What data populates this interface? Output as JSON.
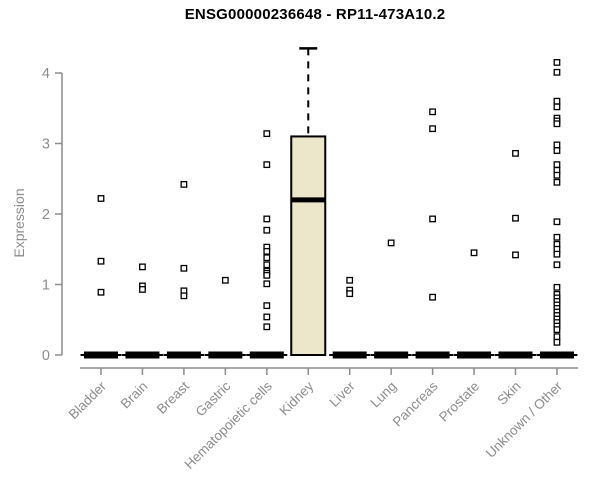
{
  "chart_data": {
    "type": "boxplot",
    "title": "ENSG00000236648 - RP11-473A10.2",
    "xlabel": "",
    "ylabel": "Expression",
    "ylim": [
      0,
      4.5
    ],
    "yticks": [
      0,
      1,
      2,
      3,
      4
    ],
    "grid": false,
    "legend": false,
    "categories": [
      "Bladder",
      "Brain",
      "Breast",
      "Gastric",
      "Hematopoietic cells",
      "Kidney",
      "Liver",
      "Lung",
      "Pancreas",
      "Prostate",
      "Skin",
      "Unknown / Other"
    ],
    "boxes": [
      {
        "category": "Bladder",
        "q1": 0,
        "median": 0,
        "q3": 0,
        "whisker_low": 0,
        "whisker_high": 0,
        "outliers": [
          2.22,
          1.33,
          0.89
        ]
      },
      {
        "category": "Brain",
        "q1": 0,
        "median": 0,
        "q3": 0,
        "whisker_low": 0,
        "whisker_high": 0,
        "outliers": [
          1.25,
          0.98,
          0.93
        ]
      },
      {
        "category": "Breast",
        "q1": 0,
        "median": 0,
        "q3": 0,
        "whisker_low": 0,
        "whisker_high": 0,
        "outliers": [
          2.42,
          1.23,
          0.91,
          0.84
        ]
      },
      {
        "category": "Gastric",
        "q1": 0,
        "median": 0,
        "q3": 0,
        "whisker_low": 0,
        "whisker_high": 0,
        "outliers": [
          1.06
        ]
      },
      {
        "category": "Hematopoietic cells",
        "q1": 0,
        "median": 0,
        "q3": 0,
        "whisker_low": 0,
        "whisker_high": 0,
        "outliers": [
          3.14,
          2.7,
          1.93,
          1.77,
          1.53,
          1.47,
          1.38,
          1.28,
          1.19,
          1.16,
          1.13,
          1.01,
          0.7,
          0.54,
          0.4
        ]
      },
      {
        "category": "Kidney",
        "q1": 0,
        "median": 2.2,
        "q3": 3.1,
        "whisker_low": 0,
        "whisker_high": 4.35,
        "outliers": []
      },
      {
        "category": "Liver",
        "q1": 0,
        "median": 0,
        "q3": 0,
        "whisker_low": 0,
        "whisker_high": 0,
        "outliers": [
          1.06,
          0.92,
          0.87
        ]
      },
      {
        "category": "Lung",
        "q1": 0,
        "median": 0,
        "q3": 0,
        "whisker_low": 0,
        "whisker_high": 0,
        "outliers": [
          1.59
        ]
      },
      {
        "category": "Pancreas",
        "q1": 0,
        "median": 0,
        "q3": 0,
        "whisker_low": 0,
        "whisker_high": 0,
        "outliers": [
          3.45,
          3.21,
          1.93,
          0.82
        ]
      },
      {
        "category": "Prostate",
        "q1": 0,
        "median": 0,
        "q3": 0,
        "whisker_low": 0,
        "whisker_high": 0,
        "outliers": [
          1.45
        ]
      },
      {
        "category": "Skin",
        "q1": 0,
        "median": 0,
        "q3": 0,
        "whisker_low": 0,
        "whisker_high": 0,
        "outliers": [
          2.86,
          1.94,
          1.42
        ]
      },
      {
        "category": "Unknown / Other",
        "q1": 0,
        "median": 0,
        "q3": 0,
        "whisker_low": 0,
        "whisker_high": 0,
        "outliers": [
          4.15,
          4.01,
          3.6,
          3.52,
          3.36,
          3.32,
          3.28,
          2.98,
          2.9,
          2.7,
          2.62,
          2.55,
          2.45,
          1.89,
          1.67,
          1.57,
          1.5,
          1.43,
          1.28,
          0.96,
          0.86,
          0.81,
          0.76,
          0.71,
          0.66,
          0.61,
          0.56,
          0.51,
          0.46,
          0.41,
          0.36,
          0.26,
          0.18
        ]
      }
    ],
    "colors": {
      "background": "#ffffff",
      "axis": "#8c8c8c",
      "tick_label": "#8c8c8c",
      "title": "#000000",
      "box_fill": "#ece6cb",
      "box_stroke": "#000000",
      "median": "#000000",
      "flat_box": "#000000",
      "whisker": "#000000",
      "outlier_fill": "#ffffff",
      "outlier_stroke": "#000000"
    }
  }
}
